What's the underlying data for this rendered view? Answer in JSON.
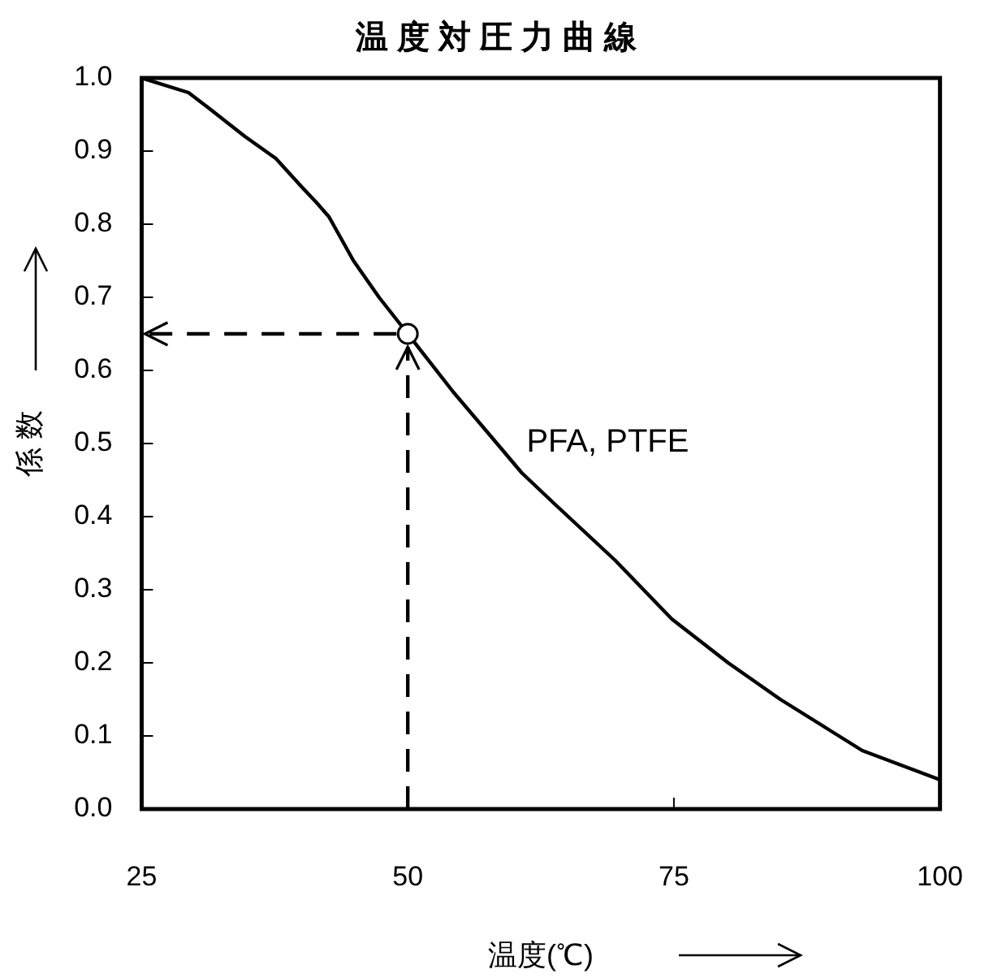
{
  "chart_data": {
    "type": "line",
    "title": "温 度 対 圧 力 曲 線",
    "xlabel": "温度(℃)",
    "ylabel": "係 数",
    "xlim": [
      25,
      100
    ],
    "xticks": [
      25,
      50,
      75,
      100
    ],
    "ylim": [
      0,
      1
    ],
    "yticks": [
      {
        "value": 0,
        "label": "0.0"
      },
      0.1,
      0.2,
      0.3,
      0.4,
      0.5,
      0.6,
      0.7,
      0.8,
      0.9,
      {
        "value": 1,
        "label": "1.0"
      }
    ],
    "legend": false,
    "ref_lines": [
      {
        "axis": "x",
        "value": 50,
        "color": "#000000",
        "line_style": "dashed"
      },
      {
        "axis": "y",
        "value": 0.65,
        "color": "#000000",
        "line_style": "dashed"
      }
    ],
    "marker": "none",
    "line_style": "solid",
    "series": [
      {
        "name": "PFA, PTFE",
        "color": "#000000",
        "x": [
          25,
          29.4,
          31.2,
          34.7,
          37.6,
          40.1,
          41.4,
          42.6,
          44.9,
          47.3,
          50,
          54.3,
          57.8,
          60.7,
          63.6,
          69.5,
          74.8,
          80.1,
          85,
          89.4,
          92.7,
          100
        ],
        "values": [
          1,
          0.98,
          0.96,
          0.92,
          0.89,
          0.85,
          0.83,
          0.81,
          0.75,
          0.7,
          0.65,
          0.57,
          0.51,
          0.46,
          0.42,
          0.34,
          0.26,
          0.2,
          0.15,
          0.11,
          0.08,
          0.04
        ]
      },
      {
        "type": "scatter",
        "color": "#000000",
        "marker": "circle",
        "x": [
          50
        ],
        "values": [
          0.65
        ]
      }
    ]
  }
}
